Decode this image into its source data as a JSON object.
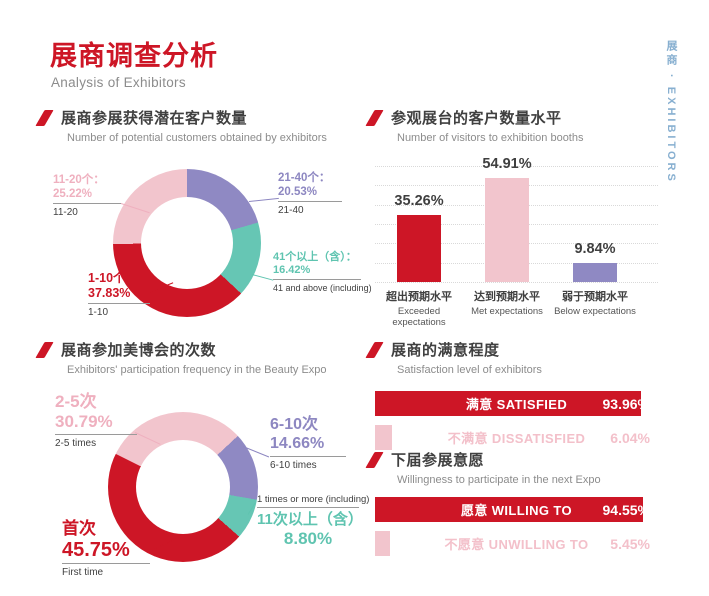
{
  "header": {
    "title": "展商调查分析",
    "subtitle": "Analysis of Exhibitors",
    "side_label": "展商 · EXHIBITORS"
  },
  "colors": {
    "red": "#cd1626",
    "pink": "#f2c5cd",
    "purple": "#8f89c3",
    "teal": "#66c6b4",
    "accent_blue": "#87afd0"
  },
  "sections": {
    "potential": {
      "title": "展商参展获得潜在客户数量",
      "subtitle": "Number of potential customers obtained by exhibitors",
      "labels": {
        "pink": {
          "line1": "11-20个：",
          "line2": "25.22%",
          "en": "11-20"
        },
        "purple": {
          "line1": "21-40个：",
          "line2": "20.53%",
          "en": "21-40"
        },
        "teal": {
          "line1": "41个以上（含）：",
          "line2": "16.42%",
          "en": "41 and above (including)"
        },
        "red": {
          "line1": "1-10个：",
          "line2": "37.83%",
          "en": "1-10"
        }
      }
    },
    "visitors": {
      "title": "参观展台的客户数量水平",
      "subtitle": "Number of visitors to exhibition booths",
      "bars": [
        {
          "cn": "超出预期水平",
          "en": "Exceeded expectations",
          "display": "35.26%"
        },
        {
          "cn": "达到预期水平",
          "en": "Met expectations",
          "display": "54.91%"
        },
        {
          "cn": "弱于预期水平",
          "en": "Below expectations",
          "display": "9.84%"
        }
      ]
    },
    "frequency": {
      "title": "展商参加美博会的次数",
      "subtitle": "Exhibitors' participation frequency in the Beauty Expo",
      "labels": {
        "pink": {
          "line1": "2-5次",
          "line2": "30.79%",
          "en": "2-5 times"
        },
        "purple": {
          "line1": "6-10次",
          "line2": "14.66%",
          "en": "6-10 times"
        },
        "teal": {
          "en": "1 times or more (including)",
          "line1": "11次以上（含）",
          "line2": "8.80%"
        },
        "red": {
          "line1": "首次",
          "line2": "45.75%",
          "en": "First time"
        }
      }
    },
    "satisfaction": {
      "title": "展商的满意程度",
      "subtitle": "Satisfaction level of exhibitors",
      "rows": [
        {
          "label": "满意 SATISFIED",
          "value": "93.96%"
        },
        {
          "label": "不满意 DISSATISFIED",
          "value": "6.04%"
        }
      ]
    },
    "willingness": {
      "title": "下届参展意愿",
      "subtitle": "Willingness to participate in the next Expo",
      "rows": [
        {
          "label": "愿意 WILLING TO",
          "value": "94.55%"
        },
        {
          "label": "不愿意 UNWILLING TO",
          "value": "5.45%"
        }
      ]
    }
  },
  "chart_data": [
    {
      "type": "pie",
      "variant": "donut",
      "title": "展商参展获得潜在客户数量 / Number of potential customers obtained by exhibitors",
      "start_angle": 0,
      "slices": [
        {
          "label": "21-40个",
          "label_en": "21-40",
          "value": 20.53,
          "color": "#8f89c3"
        },
        {
          "label": "41个以上（含）",
          "label_en": "41 and above (including)",
          "value": 16.42,
          "color": "#66c6b4"
        },
        {
          "label": "1-10个",
          "label_en": "1-10",
          "value": 37.83,
          "color": "#cd1626"
        },
        {
          "label": "11-20个",
          "label_en": "11-20",
          "value": 25.22,
          "color": "#f2c5cd"
        }
      ]
    },
    {
      "type": "bar",
      "title": "参观展台的客户数量水平 / Number of visitors to exhibition booths",
      "categories": [
        "超出预期水平 Exceeded expectations",
        "达到预期水平 Met expectations",
        "弱于预期水平 Below expectations"
      ],
      "values": [
        35.26,
        54.91,
        9.84
      ],
      "colors": [
        "#cd1626",
        "#f2c5cd",
        "#8f89c3"
      ],
      "unit": "%",
      "ylim": [
        0,
        60
      ],
      "grid": "dotted horizontal"
    },
    {
      "type": "pie",
      "variant": "donut",
      "title": "展商参加美博会的次数 / Exhibitors' participation frequency in the Beauty Expo",
      "start_angle": 47,
      "slices": [
        {
          "label": "6-10次",
          "label_en": "6-10 times",
          "value": 14.66,
          "color": "#8f89c3"
        },
        {
          "label": "11次以上（含）",
          "label_en": "1 times or more (including)",
          "value": 8.8,
          "color": "#66c6b4"
        },
        {
          "label": "首次",
          "label_en": "First time",
          "value": 45.75,
          "color": "#cd1626"
        },
        {
          "label": "2-5次",
          "label_en": "2-5 times",
          "value": 30.79,
          "color": "#f2c5cd"
        }
      ]
    },
    {
      "type": "bar",
      "orientation": "horizontal",
      "title": "展商的满意程度 / Satisfaction level of exhibitors",
      "categories": [
        "满意 SATISFIED",
        "不满意 DISSATISFIED"
      ],
      "values": [
        93.96,
        6.04
      ],
      "unit": "%"
    },
    {
      "type": "bar",
      "orientation": "horizontal",
      "title": "下届参展意愿 / Willingness to participate in the next Expo",
      "categories": [
        "愿意 WILLING TO",
        "不愿意 UNWILLING TO"
      ],
      "values": [
        94.55,
        5.45
      ],
      "unit": "%"
    }
  ]
}
